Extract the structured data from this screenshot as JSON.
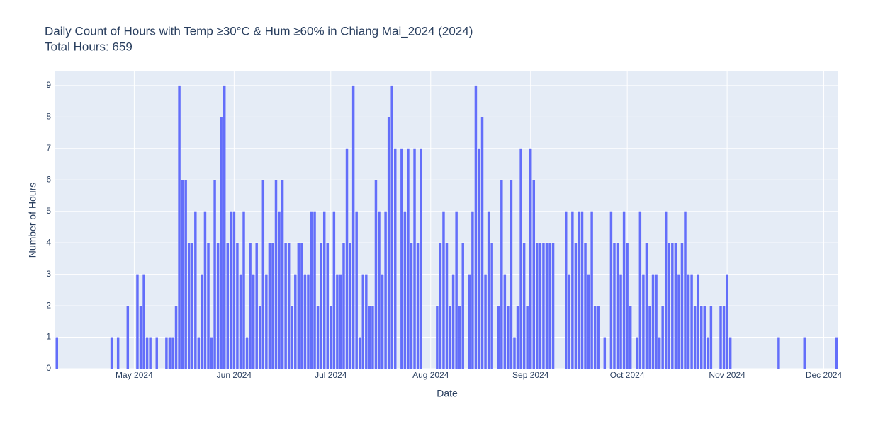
{
  "chart_data": {
    "type": "bar",
    "title": "Daily Count of Hours with Temp ≥30°C & Hum ≥60% in Chiang Mai_2024 (2024)",
    "subtitle": "Total Hours: 659",
    "x_label": "Date",
    "y_label": "Number of Hours",
    "color": "#636efa",
    "grid": true,
    "x": [
      "2024-04-07",
      "2024-04-24",
      "2024-04-26",
      "2024-04-29",
      "2024-05-02",
      "2024-05-03",
      "2024-05-04",
      "2024-05-05",
      "2024-05-06",
      "2024-05-08",
      "2024-05-11",
      "2024-05-12",
      "2024-05-13",
      "2024-05-14",
      "2024-05-15",
      "2024-05-16",
      "2024-05-17",
      "2024-05-18",
      "2024-05-19",
      "2024-05-20",
      "2024-05-21",
      "2024-05-22",
      "2024-05-23",
      "2024-05-24",
      "2024-05-25",
      "2024-05-26",
      "2024-05-27",
      "2024-05-28",
      "2024-05-29",
      "2024-05-30",
      "2024-05-31",
      "2024-06-01",
      "2024-06-02",
      "2024-06-03",
      "2024-06-04",
      "2024-06-05",
      "2024-06-06",
      "2024-06-07",
      "2024-06-08",
      "2024-06-09",
      "2024-06-10",
      "2024-06-11",
      "2024-06-12",
      "2024-06-13",
      "2024-06-14",
      "2024-06-15",
      "2024-06-16",
      "2024-06-17",
      "2024-06-18",
      "2024-06-19",
      "2024-06-20",
      "2024-06-21",
      "2024-06-22",
      "2024-06-23",
      "2024-06-24",
      "2024-06-25",
      "2024-06-26",
      "2024-06-27",
      "2024-06-28",
      "2024-06-29",
      "2024-06-30",
      "2024-07-01",
      "2024-07-02",
      "2024-07-03",
      "2024-07-04",
      "2024-07-05",
      "2024-07-06",
      "2024-07-07",
      "2024-07-08",
      "2024-07-09",
      "2024-07-10",
      "2024-07-11",
      "2024-07-12",
      "2024-07-13",
      "2024-07-14",
      "2024-07-15",
      "2024-07-16",
      "2024-07-17",
      "2024-07-18",
      "2024-07-19",
      "2024-07-20",
      "2024-07-21",
      "2024-07-23",
      "2024-07-24",
      "2024-07-25",
      "2024-07-26",
      "2024-07-27",
      "2024-07-28",
      "2024-07-29",
      "2024-08-03",
      "2024-08-04",
      "2024-08-05",
      "2024-08-06",
      "2024-08-07",
      "2024-08-08",
      "2024-08-09",
      "2024-08-10",
      "2024-08-11",
      "2024-08-13",
      "2024-08-14",
      "2024-08-15",
      "2024-08-16",
      "2024-08-17",
      "2024-08-18",
      "2024-08-19",
      "2024-08-20",
      "2024-08-22",
      "2024-08-23",
      "2024-08-24",
      "2024-08-25",
      "2024-08-26",
      "2024-08-27",
      "2024-08-28",
      "2024-08-29",
      "2024-08-30",
      "2024-08-31",
      "2024-09-01",
      "2024-09-02",
      "2024-09-03",
      "2024-09-04",
      "2024-09-05",
      "2024-09-06",
      "2024-09-07",
      "2024-09-08",
      "2024-09-12",
      "2024-09-13",
      "2024-09-14",
      "2024-09-15",
      "2024-09-16",
      "2024-09-17",
      "2024-09-18",
      "2024-09-19",
      "2024-09-20",
      "2024-09-21",
      "2024-09-22",
      "2024-09-24",
      "2024-09-26",
      "2024-09-27",
      "2024-09-28",
      "2024-09-29",
      "2024-09-30",
      "2024-10-01",
      "2024-10-02",
      "2024-10-04",
      "2024-10-05",
      "2024-10-06",
      "2024-10-07",
      "2024-10-08",
      "2024-10-09",
      "2024-10-10",
      "2024-10-11",
      "2024-10-12",
      "2024-10-13",
      "2024-10-14",
      "2024-10-15",
      "2024-10-16",
      "2024-10-17",
      "2024-10-18",
      "2024-10-19",
      "2024-10-20",
      "2024-10-21",
      "2024-10-22",
      "2024-10-23",
      "2024-10-24",
      "2024-10-25",
      "2024-10-26",
      "2024-10-27",
      "2024-10-30",
      "2024-10-31",
      "2024-11-01",
      "2024-11-02",
      "2024-11-17",
      "2024-11-25",
      "2024-12-05"
    ],
    "values": [
      1,
      1,
      1,
      2,
      3,
      2,
      3,
      1,
      1,
      1,
      1,
      1,
      1,
      2,
      9,
      6,
      6,
      4,
      4,
      5,
      1,
      3,
      5,
      4,
      1,
      6,
      4,
      8,
      9,
      4,
      5,
      5,
      4,
      3,
      5,
      1,
      4,
      3,
      4,
      2,
      6,
      3,
      4,
      4,
      6,
      5,
      6,
      4,
      4,
      2,
      3,
      4,
      4,
      3,
      3,
      5,
      5,
      2,
      4,
      5,
      4,
      2,
      5,
      3,
      3,
      4,
      7,
      4,
      9,
      5,
      1,
      3,
      3,
      2,
      2,
      6,
      5,
      3,
      5,
      8,
      9,
      7,
      7,
      5,
      7,
      4,
      7,
      4,
      7,
      2,
      4,
      5,
      4,
      2,
      3,
      5,
      2,
      4,
      3,
      5,
      9,
      7,
      8,
      3,
      5,
      4,
      2,
      6,
      3,
      2,
      6,
      1,
      2,
      7,
      4,
      2,
      7,
      6,
      4,
      4,
      4,
      4,
      4,
      4,
      5,
      3,
      5,
      4,
      5,
      5,
      4,
      3,
      5,
      2,
      2,
      1,
      5,
      4,
      4,
      3,
      5,
      4,
      2,
      1,
      5,
      3,
      4,
      2,
      3,
      3,
      1,
      2,
      5,
      4,
      4,
      4,
      3,
      4,
      5,
      3,
      3,
      2,
      3,
      2,
      2,
      1,
      2,
      2,
      2,
      3,
      1,
      1,
      1,
      1
    ],
    "xlim": [
      "2024-04-06T12:00:00Z",
      "2024-12-05T12:00:00Z"
    ],
    "xticks": [
      {
        "value": "2024-05-01",
        "label": "May 2024"
      },
      {
        "value": "2024-06-01",
        "label": "Jun 2024"
      },
      {
        "value": "2024-07-01",
        "label": "Jul 2024"
      },
      {
        "value": "2024-08-01",
        "label": "Aug 2024"
      },
      {
        "value": "2024-09-01",
        "label": "Sep 2024"
      },
      {
        "value": "2024-10-01",
        "label": "Oct 2024"
      },
      {
        "value": "2024-11-01",
        "label": "Nov 2024"
      },
      {
        "value": "2024-12-01",
        "label": "Dec 2024"
      }
    ],
    "ylim": [
      0,
      9.47
    ],
    "yticks": [
      0,
      1,
      2,
      3,
      4,
      5,
      6,
      7,
      8,
      9
    ]
  }
}
